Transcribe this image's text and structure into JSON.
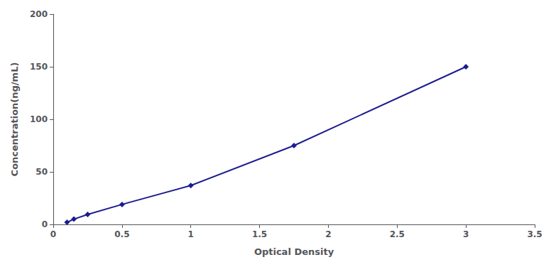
{
  "chart_data": {
    "type": "line",
    "xlabel": "Optical Density",
    "ylabel": "Concentration(ng/mL)",
    "x": [
      0.1,
      0.15,
      0.25,
      0.5,
      1.0,
      1.75,
      3.0
    ],
    "values": [
      2.0,
      5.0,
      9.5,
      19.0,
      37.0,
      75.0,
      150.0
    ],
    "color": "#1c1c8f",
    "marker": "diamond",
    "xlim": [
      0,
      3.5
    ],
    "xticks": [
      0,
      0.5,
      1,
      1.5,
      2,
      2.5,
      3,
      3.5
    ],
    "ylim": [
      0,
      200
    ],
    "yticks": [
      0,
      50,
      100,
      150,
      200
    ],
    "grid": false
  }
}
